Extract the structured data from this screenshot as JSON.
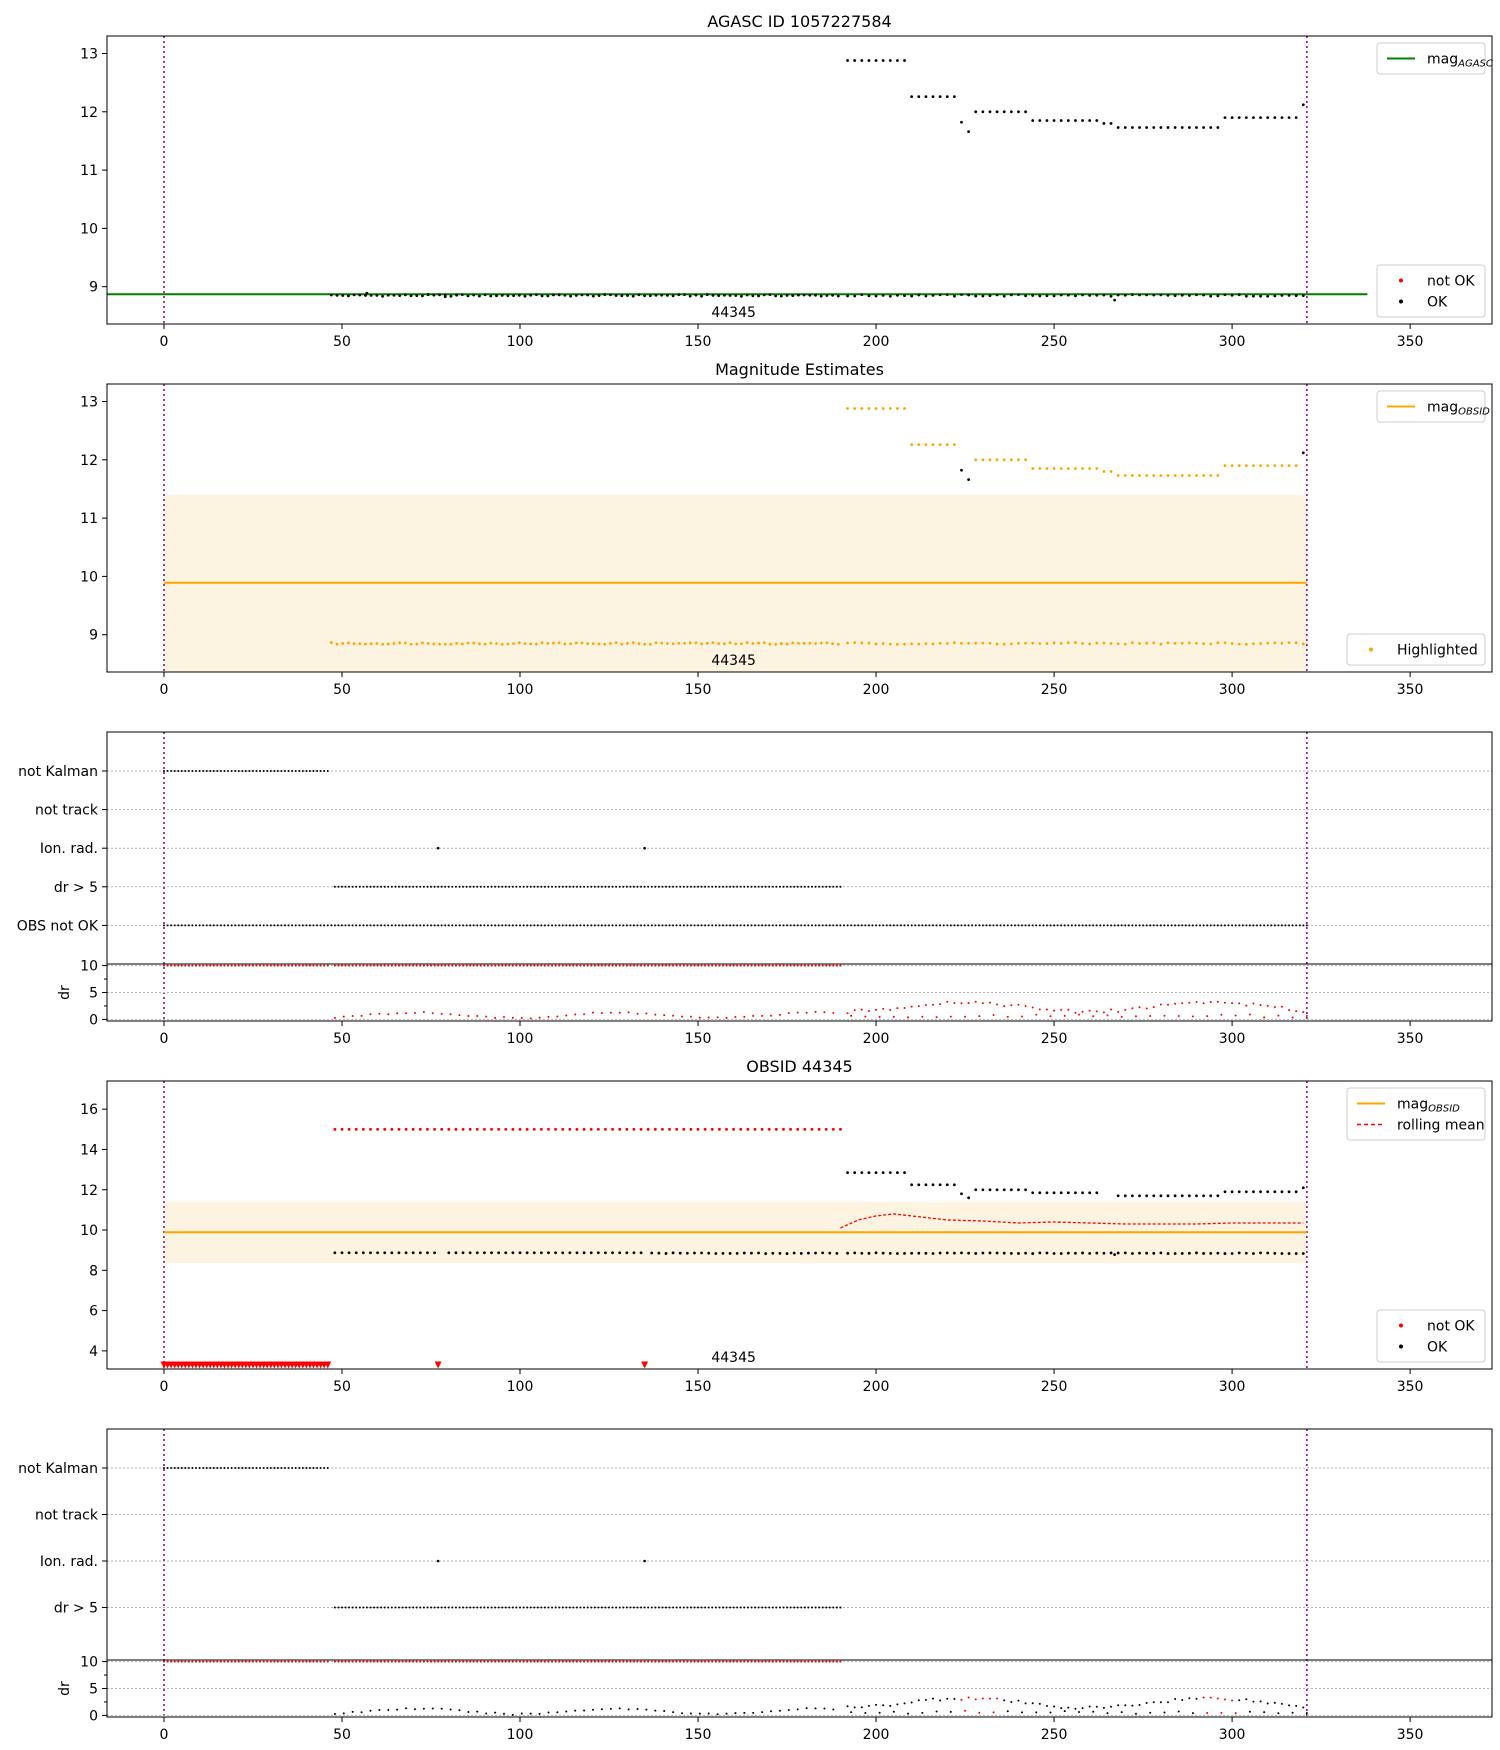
{
  "colors": {
    "black": "#000000",
    "red": "#ff0000",
    "green": "#008000",
    "orange": "#ffa500",
    "band": "#fdf3e1",
    "purple": "#800080",
    "grid": "#b0b0b0"
  },
  "chart_data": [
    {
      "type": "scatter",
      "title": "AGASC ID 1057227584",
      "xlim": [
        -16,
        373
      ],
      "ylim": [
        8.36,
        13.3
      ],
      "x_ticks": [
        0,
        50,
        100,
        150,
        200,
        250,
        300,
        350
      ],
      "y_ticks": [
        9,
        10,
        11,
        12,
        13
      ],
      "vlines": [
        0,
        321
      ],
      "hline": {
        "value": 8.87,
        "x_range": [
          -16,
          338
        ],
        "color": "green"
      },
      "obsid_label": {
        "text": "44345",
        "x": 160
      },
      "segments": [
        {
          "x0": 47,
          "x1": 190,
          "step": 1.6,
          "y": 8.85,
          "jitter": 0.015,
          "color": "black"
        },
        {
          "x0": 192,
          "x1": 208,
          "step": 2,
          "y": 12.88,
          "color": "black"
        },
        {
          "x0": 210,
          "x1": 222,
          "step": 2,
          "y": 12.26,
          "color": "black"
        },
        {
          "x0": 228,
          "x1": 242,
          "step": 2,
          "y": 12.0,
          "color": "black"
        },
        {
          "x0": 244,
          "x1": 262,
          "step": 2,
          "y": 11.85,
          "color": "black"
        },
        {
          "x0": 264,
          "x1": 266,
          "step": 2,
          "y": 11.8,
          "color": "black"
        },
        {
          "x0": 268,
          "x1": 296,
          "step": 2,
          "y": 11.73,
          "color": "black"
        },
        {
          "x0": 298,
          "x1": 318,
          "step": 2,
          "y": 11.9,
          "color": "black"
        },
        {
          "x0": 192,
          "x1": 320,
          "step": 2,
          "y": 8.85,
          "jitter": 0.015,
          "color": "black"
        }
      ],
      "points": [
        [
          224,
          11.82
        ],
        [
          226,
          11.66
        ],
        [
          320,
          12.12
        ],
        [
          267,
          8.77
        ],
        [
          57,
          8.89
        ],
        [
          79,
          8.83
        ]
      ],
      "legends": [
        {
          "pos": "top-right",
          "items": [
            {
              "label": "mag",
              "sub": "AGASC",
              "kind": "line",
              "color": "green"
            }
          ]
        },
        {
          "pos": "bottom-right",
          "items": [
            {
              "label": "not OK",
              "kind": "dot",
              "color": "red"
            },
            {
              "label": "OK",
              "kind": "dot",
              "color": "black"
            }
          ]
        }
      ]
    },
    {
      "type": "scatter",
      "title": "Magnitude Estimates",
      "xlim": [
        -16,
        373
      ],
      "ylim": [
        8.36,
        13.3
      ],
      "x_ticks": [
        0,
        50,
        100,
        150,
        200,
        250,
        300,
        350
      ],
      "y_ticks": [
        9,
        10,
        11,
        12,
        13
      ],
      "vlines": [
        0,
        321
      ],
      "band": {
        "x_range": [
          0,
          321
        ],
        "y_range": [
          8.36,
          11.4
        ]
      },
      "hline": {
        "value": 9.89,
        "x_range": [
          0,
          321
        ],
        "color": "orange"
      },
      "obsid_label": {
        "text": "44345",
        "x": 160
      },
      "segments": [
        {
          "x0": 47,
          "x1": 190,
          "step": 1.6,
          "y": 8.85,
          "jitter": 0.015,
          "color": "orange"
        },
        {
          "x0": 192,
          "x1": 208,
          "step": 2,
          "y": 12.88,
          "color": "orange"
        },
        {
          "x0": 210,
          "x1": 222,
          "step": 2,
          "y": 12.26,
          "color": "orange"
        },
        {
          "x0": 228,
          "x1": 242,
          "step": 2,
          "y": 12.0,
          "color": "orange"
        },
        {
          "x0": 244,
          "x1": 262,
          "step": 2,
          "y": 11.85,
          "color": "orange"
        },
        {
          "x0": 264,
          "x1": 266,
          "step": 2,
          "y": 11.8,
          "color": "orange"
        },
        {
          "x0": 268,
          "x1": 296,
          "step": 2,
          "y": 11.73,
          "color": "orange"
        },
        {
          "x0": 298,
          "x1": 318,
          "step": 2,
          "y": 11.9,
          "color": "orange"
        },
        {
          "x0": 192,
          "x1": 320,
          "step": 2,
          "y": 8.85,
          "jitter": 0.015,
          "color": "orange"
        }
      ],
      "points": [
        [
          224,
          11.82
        ],
        [
          226,
          11.66
        ],
        [
          320,
          12.12
        ]
      ],
      "legends": [
        {
          "pos": "top-right",
          "items": [
            {
              "label": "mag",
              "sub": "OBSID",
              "kind": "line",
              "color": "orange"
            }
          ]
        },
        {
          "pos": "bottom-right",
          "items": [
            {
              "label": "Highlighted",
              "kind": "dot",
              "color": "orange"
            }
          ]
        }
      ]
    },
    {
      "type": "flags",
      "xlim": [
        -16,
        373
      ],
      "x_ticks": [
        0,
        50,
        100,
        150,
        200,
        250,
        300,
        350
      ],
      "vlines": [
        0,
        321
      ],
      "categories": [
        "not Kalman",
        "not track",
        "Ion. rad.",
        "dr > 5",
        "OBS not OK"
      ],
      "flag_rows": [
        {
          "row": 0,
          "ranges": [
            [
              0,
              46
            ]
          ],
          "color": "black"
        },
        {
          "row": 2,
          "points": [
            77,
            135
          ],
          "color": "black"
        },
        {
          "row": 3,
          "ranges": [
            [
              48,
              190
            ]
          ],
          "color": "black"
        },
        {
          "row": 4,
          "ranges": [
            [
              0,
              321
            ]
          ],
          "color": "black"
        }
      ],
      "dr_panel": {
        "ylabel": "dr",
        "ylim": [
          -0.3,
          10.3
        ],
        "y_ticks": [
          0,
          5,
          10
        ],
        "top_ranges": [
          [
            0,
            46
          ],
          [
            48,
            190
          ]
        ],
        "top_color": "red",
        "series_color": "red"
      }
    },
    {
      "type": "scatter",
      "title": "OBSID 44345",
      "xlim": [
        -16,
        373
      ],
      "ylim": [
        3.1,
        17.4
      ],
      "x_ticks": [
        0,
        50,
        100,
        150,
        200,
        250,
        300,
        350
      ],
      "y_ticks": [
        4,
        6,
        8,
        10,
        12,
        14,
        16
      ],
      "vlines": [
        0,
        321
      ],
      "band": {
        "x_range": [
          0,
          321
        ],
        "y_range": [
          8.35,
          11.4
        ]
      },
      "hline": {
        "value": 9.89,
        "x_range": [
          0,
          321
        ],
        "color": "orange"
      },
      "obsid_label": {
        "text": "44345",
        "x": 160,
        "y": 3.7
      },
      "segments": [
        {
          "x0": 48,
          "x1": 190,
          "step": 2,
          "y": 15.0,
          "color": "red"
        },
        {
          "x0": 0,
          "x1": 46,
          "step": 1,
          "y": 3.3,
          "color": "red",
          "marker": "triangle"
        },
        {
          "x0": 48,
          "x1": 76,
          "step": 2,
          "y": 8.87,
          "color": "black"
        },
        {
          "x0": 80,
          "x1": 134,
          "step": 2,
          "y": 8.87,
          "color": "black"
        },
        {
          "x0": 137,
          "x1": 190,
          "step": 2,
          "y": 8.85,
          "jitter": 0.02,
          "color": "black"
        },
        {
          "x0": 192,
          "x1": 208,
          "step": 2,
          "y": 12.85,
          "color": "black"
        },
        {
          "x0": 210,
          "x1": 222,
          "step": 2,
          "y": 12.25,
          "color": "black"
        },
        {
          "x0": 228,
          "x1": 242,
          "step": 2,
          "y": 12.0,
          "color": "black"
        },
        {
          "x0": 244,
          "x1": 262,
          "step": 2,
          "y": 11.85,
          "color": "black"
        },
        {
          "x0": 268,
          "x1": 296,
          "step": 2,
          "y": 11.7,
          "color": "black"
        },
        {
          "x0": 298,
          "x1": 318,
          "step": 2,
          "y": 11.9,
          "color": "black"
        },
        {
          "x0": 192,
          "x1": 320,
          "step": 2,
          "y": 8.85,
          "jitter": 0.02,
          "color": "black"
        }
      ],
      "points": [
        [
          224,
          11.8
        ],
        [
          226,
          11.6
        ],
        [
          320,
          12.1
        ],
        [
          267,
          8.78
        ]
      ],
      "triangles": [
        [
          77,
          3.3
        ],
        [
          135,
          3.3
        ]
      ],
      "rolling_mean": {
        "x": [
          190,
          195,
          200,
          205,
          210,
          220,
          230,
          240,
          250,
          260,
          270,
          280,
          290,
          300,
          310,
          320
        ],
        "y": [
          10.1,
          10.5,
          10.7,
          10.8,
          10.7,
          10.5,
          10.45,
          10.35,
          10.4,
          10.35,
          10.3,
          10.3,
          10.3,
          10.35,
          10.35,
          10.35
        ],
        "color": "red"
      },
      "legends": [
        {
          "pos": "top-right",
          "items": [
            {
              "label": "mag",
              "sub": "OBSID",
              "kind": "line",
              "color": "orange"
            },
            {
              "label": "rolling mean",
              "kind": "dash",
              "color": "red"
            }
          ]
        },
        {
          "pos": "bottom-right",
          "items": [
            {
              "label": "not OK",
              "kind": "dot",
              "color": "red"
            },
            {
              "label": "OK",
              "kind": "dot",
              "color": "black"
            }
          ]
        }
      ]
    },
    {
      "type": "flags",
      "xlim": [
        -16,
        373
      ],
      "x_ticks": [
        0,
        50,
        100,
        150,
        200,
        250,
        300,
        350
      ],
      "vlines": [
        0,
        321
      ],
      "categories": [
        "not Kalman",
        "not track",
        "Ion. rad.",
        "dr > 5"
      ],
      "flag_rows": [
        {
          "row": 0,
          "ranges": [
            [
              0,
              46
            ]
          ],
          "color": "black"
        },
        {
          "row": 2,
          "points": [
            77,
            135
          ],
          "color": "black"
        },
        {
          "row": 3,
          "ranges": [
            [
              48,
              190
            ]
          ],
          "color": "black"
        }
      ],
      "dr_panel": {
        "ylabel": "dr",
        "ylim": [
          -0.3,
          10.3
        ],
        "y_ticks": [
          0,
          5,
          10
        ],
        "top_ranges": [
          [
            0,
            46
          ],
          [
            48,
            190
          ]
        ],
        "top_color": "red",
        "series_color": "black",
        "highlight_color": "red"
      }
    }
  ]
}
